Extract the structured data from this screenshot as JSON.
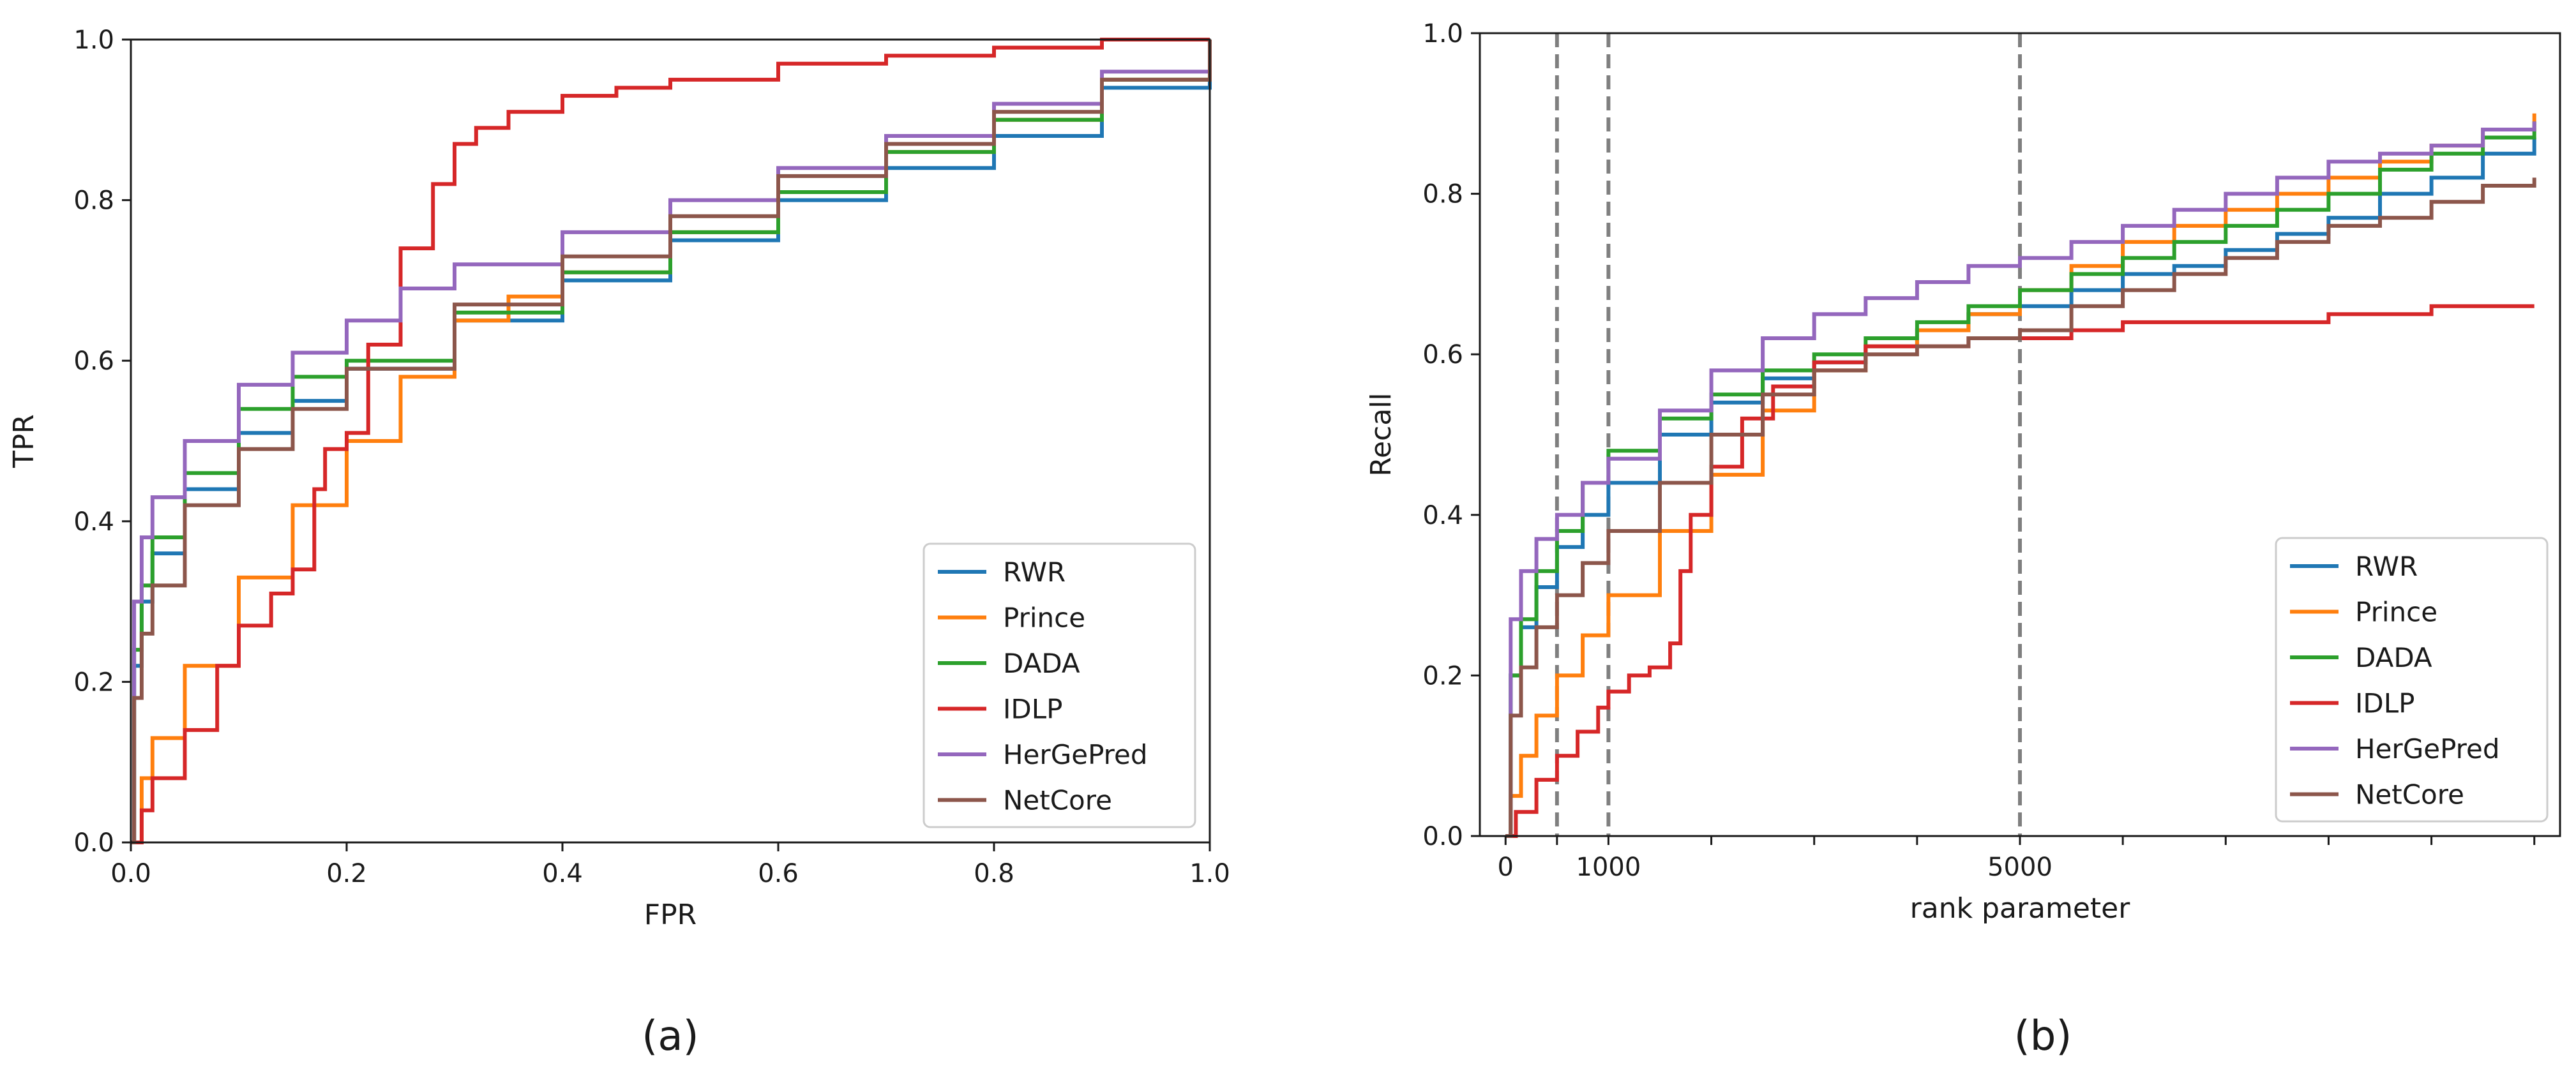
{
  "chart_data": [
    {
      "type": "line",
      "panel_label": "(a)",
      "xlabel": "FPR",
      "ylabel": "TPR",
      "xlim": [
        0.0,
        1.0
      ],
      "ylim": [
        0.0,
        1.0
      ],
      "xticks": [
        0.0,
        0.2,
        0.4,
        0.6,
        0.8,
        1.0
      ],
      "xtick_labels": [
        "0.0",
        "0.2",
        "0.4",
        "0.6",
        "0.8",
        "1.0"
      ],
      "yticks": [
        0.0,
        0.2,
        0.4,
        0.6,
        0.8,
        1.0
      ],
      "ytick_labels": [
        "0.0",
        "0.2",
        "0.4",
        "0.6",
        "0.8",
        "1.0"
      ],
      "grid": false,
      "legend_position": "bottom-right",
      "series": [
        {
          "name": "RWR",
          "color": "#1f77b4",
          "x": [
            0,
            0.003,
            0.01,
            0.02,
            0.05,
            0.1,
            0.15,
            0.2,
            0.3,
            0.4,
            0.5,
            0.6,
            0.7,
            0.8,
            0.9,
            1.0
          ],
          "y": [
            0,
            0.22,
            0.3,
            0.36,
            0.44,
            0.51,
            0.55,
            0.59,
            0.65,
            0.7,
            0.75,
            0.8,
            0.84,
            0.88,
            0.94,
            1.0
          ]
        },
        {
          "name": "Prince",
          "color": "#ff7f0e",
          "x": [
            0,
            0.01,
            0.02,
            0.05,
            0.1,
            0.15,
            0.2,
            0.25,
            0.3,
            0.35,
            0.4,
            0.5,
            0.6,
            0.7,
            0.8,
            0.9,
            1.0
          ],
          "y": [
            0,
            0.08,
            0.13,
            0.22,
            0.33,
            0.42,
            0.5,
            0.58,
            0.65,
            0.68,
            0.71,
            0.76,
            0.81,
            0.86,
            0.9,
            0.95,
            1.0
          ]
        },
        {
          "name": "DADA",
          "color": "#2ca02c",
          "x": [
            0,
            0.003,
            0.01,
            0.02,
            0.05,
            0.1,
            0.15,
            0.2,
            0.3,
            0.4,
            0.5,
            0.6,
            0.7,
            0.8,
            0.9,
            1.0
          ],
          "y": [
            0,
            0.24,
            0.32,
            0.38,
            0.46,
            0.54,
            0.58,
            0.6,
            0.66,
            0.71,
            0.76,
            0.81,
            0.86,
            0.9,
            0.95,
            1.0
          ]
        },
        {
          "name": "IDLP",
          "color": "#d62728",
          "x": [
            0,
            0.01,
            0.02,
            0.05,
            0.08,
            0.1,
            0.13,
            0.15,
            0.17,
            0.18,
            0.2,
            0.22,
            0.25,
            0.28,
            0.3,
            0.32,
            0.35,
            0.4,
            0.45,
            0.5,
            0.6,
            0.7,
            0.8,
            0.9,
            1.0
          ],
          "y": [
            0,
            0.04,
            0.08,
            0.14,
            0.22,
            0.27,
            0.31,
            0.34,
            0.44,
            0.49,
            0.51,
            0.62,
            0.74,
            0.82,
            0.87,
            0.89,
            0.91,
            0.93,
            0.94,
            0.95,
            0.97,
            0.98,
            0.99,
            1.0,
            1.0
          ]
        },
        {
          "name": "HerGePred",
          "color": "#9467bd",
          "x": [
            0,
            0.003,
            0.01,
            0.02,
            0.05,
            0.1,
            0.15,
            0.2,
            0.25,
            0.3,
            0.4,
            0.5,
            0.6,
            0.7,
            0.8,
            0.9,
            1.0
          ],
          "y": [
            0,
            0.3,
            0.38,
            0.43,
            0.5,
            0.57,
            0.61,
            0.65,
            0.69,
            0.72,
            0.76,
            0.8,
            0.84,
            0.88,
            0.92,
            0.96,
            1.0
          ]
        },
        {
          "name": "NetCore",
          "color": "#8c564b",
          "x": [
            0,
            0.003,
            0.01,
            0.02,
            0.05,
            0.1,
            0.15,
            0.2,
            0.3,
            0.4,
            0.5,
            0.6,
            0.7,
            0.8,
            0.9,
            1.0
          ],
          "y": [
            0,
            0.18,
            0.26,
            0.32,
            0.42,
            0.49,
            0.54,
            0.59,
            0.67,
            0.73,
            0.78,
            0.83,
            0.87,
            0.91,
            0.95,
            1.0
          ]
        }
      ]
    },
    {
      "type": "line",
      "panel_label": "(b)",
      "xlabel": "rank parameter",
      "ylabel": "Recall",
      "xlim": [
        -250,
        10250
      ],
      "ylim": [
        0.0,
        1.0
      ],
      "xticks": [
        0,
        500,
        1000,
        2000,
        3000,
        4000,
        5000,
        6000,
        7000,
        8000,
        9000,
        10000
      ],
      "xtick_labels": [
        "0",
        "",
        "1000",
        "",
        "",
        "",
        "5000",
        "",
        "",
        "",
        "",
        ""
      ],
      "yticks": [
        0.0,
        0.2,
        0.4,
        0.6,
        0.8,
        1.0
      ],
      "ytick_labels": [
        "0.0",
        "0.2",
        "0.4",
        "0.6",
        "0.8",
        "1.0"
      ],
      "vlines": [
        500,
        1000,
        5000
      ],
      "grid": false,
      "legend_position": "bottom-right",
      "series": [
        {
          "name": "RWR",
          "color": "#1f77b4",
          "x": [
            0,
            50,
            150,
            300,
            500,
            750,
            1000,
            1500,
            2000,
            2500,
            3000,
            3500,
            4000,
            4500,
            5000,
            5500,
            6000,
            6500,
            7000,
            7500,
            8000,
            8500,
            9000,
            9500,
            10000
          ],
          "y": [
            0,
            0.2,
            0.26,
            0.31,
            0.36,
            0.4,
            0.44,
            0.5,
            0.54,
            0.57,
            0.59,
            0.61,
            0.63,
            0.65,
            0.66,
            0.68,
            0.7,
            0.71,
            0.73,
            0.75,
            0.77,
            0.8,
            0.82,
            0.85,
            0.87
          ]
        },
        {
          "name": "Prince",
          "color": "#ff7f0e",
          "x": [
            0,
            50,
            150,
            300,
            500,
            750,
            1000,
            1500,
            2000,
            2500,
            3000,
            3500,
            4000,
            4500,
            5000,
            5500,
            6000,
            6500,
            7000,
            7500,
            8000,
            8500,
            9000,
            9500,
            10000
          ],
          "y": [
            0,
            0.05,
            0.1,
            0.15,
            0.2,
            0.25,
            0.3,
            0.38,
            0.45,
            0.53,
            0.58,
            0.61,
            0.63,
            0.65,
            0.68,
            0.71,
            0.74,
            0.76,
            0.78,
            0.8,
            0.82,
            0.84,
            0.86,
            0.88,
            0.9
          ]
        },
        {
          "name": "DADA",
          "color": "#2ca02c",
          "x": [
            0,
            50,
            150,
            300,
            500,
            750,
            1000,
            1500,
            2000,
            2500,
            3000,
            3500,
            4000,
            4500,
            5000,
            5500,
            6000,
            6500,
            7000,
            7500,
            8000,
            8500,
            9000,
            9500,
            10000
          ],
          "y": [
            0,
            0.2,
            0.27,
            0.33,
            0.38,
            0.44,
            0.48,
            0.52,
            0.55,
            0.58,
            0.6,
            0.62,
            0.64,
            0.66,
            0.68,
            0.7,
            0.72,
            0.74,
            0.76,
            0.78,
            0.8,
            0.83,
            0.85,
            0.87,
            0.89
          ]
        },
        {
          "name": "IDLP",
          "color": "#d62728",
          "x": [
            0,
            100,
            300,
            500,
            700,
            900,
            1000,
            1200,
            1400,
            1600,
            1700,
            1800,
            2000,
            2300,
            2600,
            3000,
            3500,
            4000,
            4500,
            5000,
            5500,
            6000,
            7000,
            8000,
            9000,
            10000
          ],
          "y": [
            0,
            0.03,
            0.07,
            0.1,
            0.13,
            0.16,
            0.18,
            0.2,
            0.21,
            0.24,
            0.33,
            0.4,
            0.46,
            0.52,
            0.56,
            0.59,
            0.61,
            0.61,
            0.62,
            0.62,
            0.63,
            0.64,
            0.64,
            0.65,
            0.66,
            0.66
          ]
        },
        {
          "name": "HerGePred",
          "color": "#9467bd",
          "x": [
            0,
            50,
            150,
            300,
            500,
            750,
            1000,
            1500,
            2000,
            2500,
            3000,
            3500,
            4000,
            4500,
            5000,
            5500,
            6000,
            6500,
            7000,
            7500,
            8000,
            8500,
            9000,
            9500,
            10000
          ],
          "y": [
            0,
            0.27,
            0.33,
            0.37,
            0.4,
            0.44,
            0.47,
            0.53,
            0.58,
            0.62,
            0.65,
            0.67,
            0.69,
            0.71,
            0.72,
            0.74,
            0.76,
            0.78,
            0.8,
            0.82,
            0.84,
            0.85,
            0.86,
            0.88,
            0.89
          ]
        },
        {
          "name": "NetCore",
          "color": "#8c564b",
          "x": [
            0,
            50,
            150,
            300,
            500,
            750,
            1000,
            1500,
            2000,
            2500,
            3000,
            3500,
            4000,
            4500,
            5000,
            5500,
            6000,
            6500,
            7000,
            7500,
            8000,
            8500,
            9000,
            9500,
            10000
          ],
          "y": [
            0,
            0.15,
            0.21,
            0.26,
            0.3,
            0.34,
            0.38,
            0.44,
            0.5,
            0.55,
            0.58,
            0.6,
            0.61,
            0.62,
            0.63,
            0.66,
            0.68,
            0.7,
            0.72,
            0.74,
            0.76,
            0.77,
            0.79,
            0.81,
            0.82
          ]
        }
      ]
    }
  ]
}
